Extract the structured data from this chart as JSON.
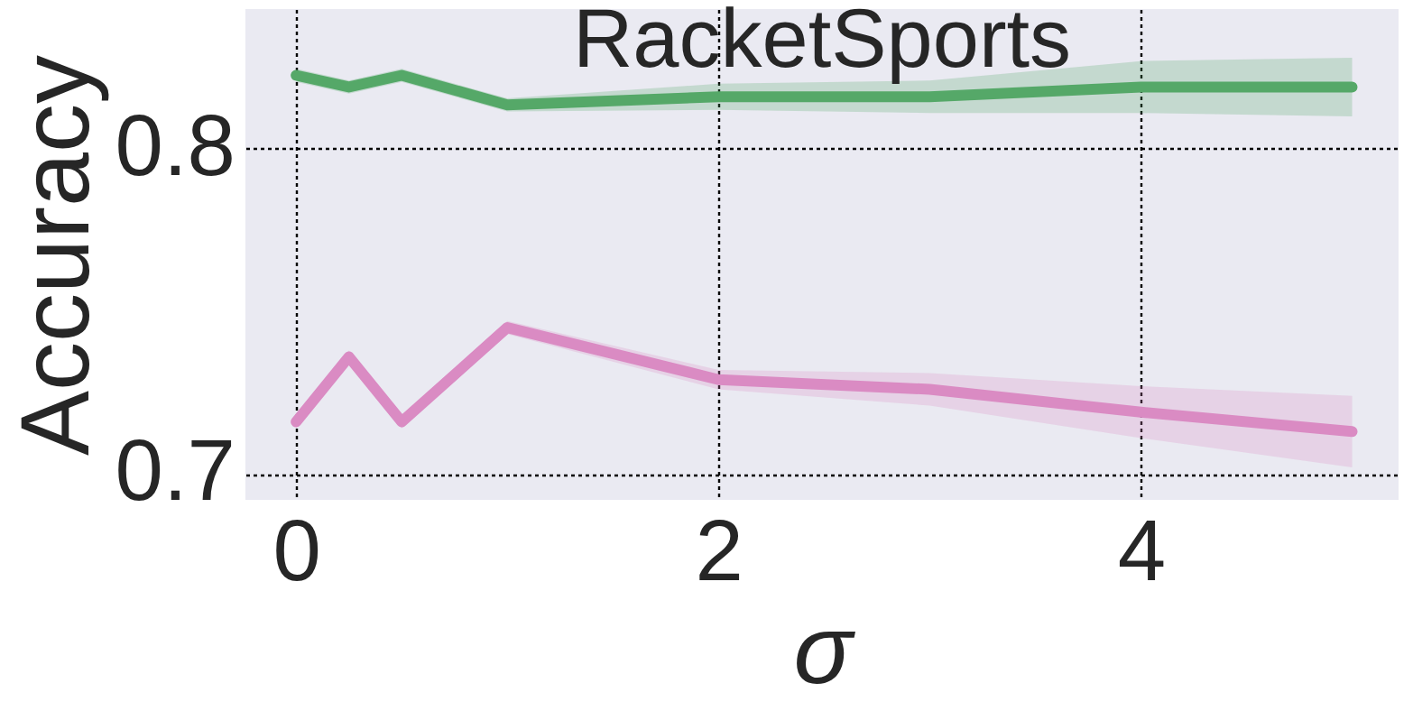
{
  "chart_data": {
    "type": "line",
    "title": "RacketSports",
    "xlabel": "σ",
    "ylabel": "Accuracy",
    "x": [
      0,
      0.25,
      0.5,
      1,
      2,
      3,
      4,
      5
    ],
    "series": [
      {
        "color": "#55a868",
        "values": [
          0.8226,
          0.819,
          0.8226,
          0.8135,
          0.816,
          0.816,
          0.819,
          0.819
        ],
        "lower": [
          0.8206,
          0.817,
          0.8206,
          0.8115,
          0.812,
          0.811,
          0.811,
          0.81
        ],
        "upper": [
          0.8246,
          0.821,
          0.8246,
          0.8155,
          0.82,
          0.821,
          0.827,
          0.828
        ]
      },
      {
        "color": "#da8bc3",
        "values": [
          0.716,
          0.736,
          0.716,
          0.745,
          0.729,
          0.726,
          0.719,
          0.713
        ],
        "lower": [
          0.714,
          0.734,
          0.714,
          0.743,
          0.726,
          0.721,
          0.711,
          0.702
        ],
        "upper": [
          0.718,
          0.738,
          0.718,
          0.747,
          0.732,
          0.731,
          0.727,
          0.724
        ]
      }
    ],
    "xlim": [
      -0.24,
      5.22
    ],
    "ylim": [
      0.692,
      0.843
    ],
    "xticks": [
      0,
      2,
      4
    ],
    "yticks": [
      0.7,
      0.8
    ],
    "grid": true,
    "line_style": "solid",
    "marker": "none"
  }
}
